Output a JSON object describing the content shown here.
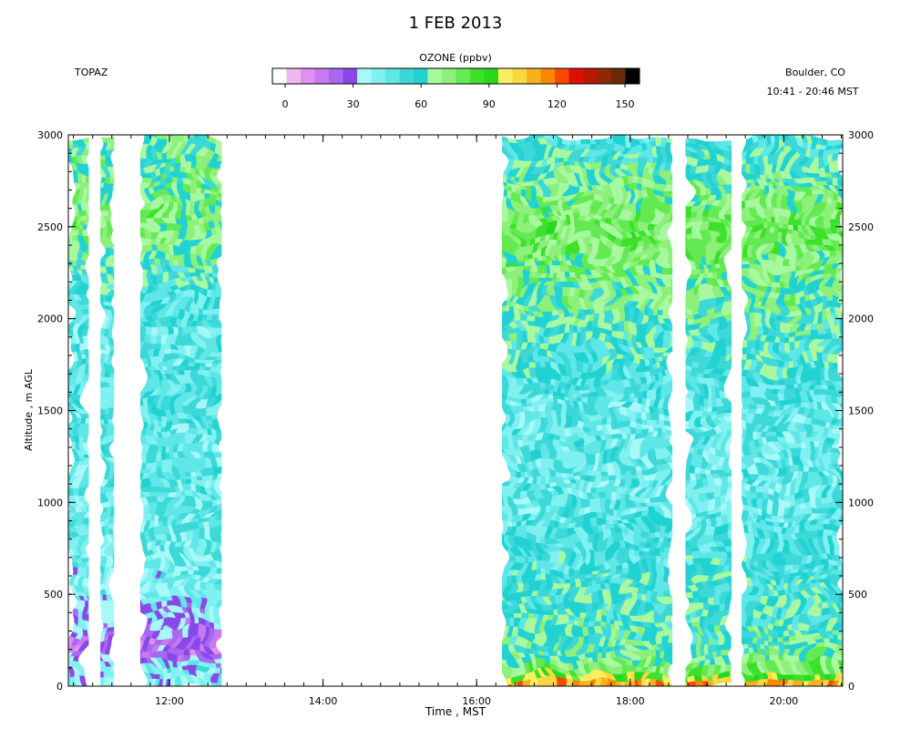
{
  "chart_data": {
    "type": "heatmap",
    "title": "1 FEB 2013",
    "left_label": "TOPAZ",
    "right_label_line1": "Boulder, CO",
    "right_label_line2": "10:41 - 20:46 MST",
    "xlabel": "Time , MST",
    "ylabel": "Altitude , m AGL",
    "x_ticks": [
      "12:00",
      "14:00",
      "16:00",
      "18:00",
      "20:00"
    ],
    "y_ticks": [
      "0",
      "500",
      "1000",
      "1500",
      "2000",
      "2500",
      "3000"
    ],
    "x_range_hours": [
      10.683,
      20.767
    ],
    "y_range_m": [
      0,
      3000
    ],
    "colorbar": {
      "label": "OZONE (ppbv)",
      "ticks": [
        "0",
        "30",
        "60",
        "90",
        "120",
        "150"
      ],
      "range": [
        0,
        150
      ],
      "colors": [
        "#ffffff",
        "#f0b8f0",
        "#e090f0",
        "#c878f0",
        "#a868f0",
        "#8848e8",
        "#a8f8f8",
        "#80f0f0",
        "#5ee6e6",
        "#3cd8d8",
        "#20d2d2",
        "#a8f8a0",
        "#8cf07a",
        "#64ea52",
        "#3ee02a",
        "#28d820",
        "#f8f060",
        "#f8d840",
        "#f8b020",
        "#f88800",
        "#f84800",
        "#e01000",
        "#b81800",
        "#902808",
        "#6c2808",
        "#000000"
      ]
    },
    "data_segments_hours": [
      [
        10.683,
        10.95
      ],
      [
        11.1,
        11.28
      ],
      [
        11.62,
        12.68
      ],
      [
        16.33,
        18.55
      ],
      [
        18.72,
        19.32
      ],
      [
        19.45,
        20.767
      ]
    ],
    "profile_ppbv": {
      "altitude_m": [
        0,
        100,
        200,
        500,
        1000,
        1500,
        2000,
        2500,
        3000
      ],
      "morning": [
        40,
        45,
        25,
        45,
        50,
        52,
        50,
        75,
        65
      ],
      "afternoon": [
        120,
        75,
        65,
        60,
        50,
        50,
        65,
        80,
        55
      ]
    }
  }
}
